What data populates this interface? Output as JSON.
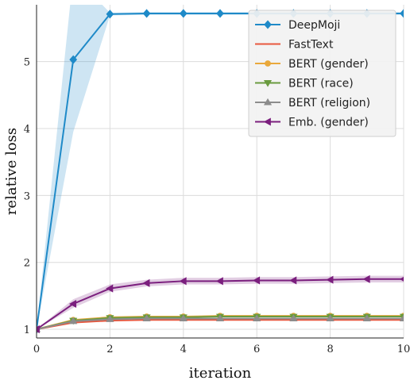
{
  "chart_data": {
    "type": "line",
    "xlabel": "iteration",
    "ylabel": "relative loss",
    "xlim": [
      0,
      10
    ],
    "ylim": [
      0.87,
      5.85
    ],
    "xticks": [
      0,
      2,
      4,
      6,
      8,
      10
    ],
    "yticks": [
      1,
      2,
      3,
      4,
      5
    ],
    "grid": true,
    "legend_position": "top-right",
    "x": [
      0,
      1,
      2,
      3,
      4,
      5,
      6,
      7,
      8,
      9,
      10
    ],
    "series": [
      {
        "name": "DeepMoji",
        "color": "#1f8ac8",
        "marker": "diamond",
        "values": [
          1.0,
          5.03,
          5.71,
          5.72,
          5.72,
          5.72,
          5.72,
          5.72,
          5.72,
          5.72,
          5.72
        ],
        "band_lower": [
          1.0,
          3.95,
          5.69,
          5.7,
          5.7,
          5.7,
          5.7,
          5.7,
          5.7,
          5.7,
          5.7
        ],
        "band_upper": [
          1.0,
          6.3,
          5.73,
          5.74,
          5.74,
          5.74,
          5.74,
          5.74,
          5.74,
          5.74,
          5.74
        ]
      },
      {
        "name": "FastText",
        "color": "#e8573e",
        "marker": "none",
        "values": [
          1.0,
          1.1,
          1.13,
          1.14,
          1.14,
          1.14,
          1.14,
          1.14,
          1.14,
          1.14,
          1.14
        ]
      },
      {
        "name": "BERT (gender)",
        "color": "#e9a83b",
        "marker": "circle",
        "values": [
          1.0,
          1.14,
          1.18,
          1.19,
          1.19,
          1.2,
          1.2,
          1.2,
          1.2,
          1.2,
          1.2
        ]
      },
      {
        "name": "BERT (race)",
        "color": "#6a9b3f",
        "marker": "triangle-down",
        "values": [
          1.0,
          1.13,
          1.17,
          1.18,
          1.18,
          1.19,
          1.19,
          1.19,
          1.19,
          1.19,
          1.19
        ]
      },
      {
        "name": "BERT (religion)",
        "color": "#8c8c8c",
        "marker": "triangle-up",
        "values": [
          1.0,
          1.12,
          1.15,
          1.16,
          1.16,
          1.16,
          1.16,
          1.16,
          1.16,
          1.16,
          1.16
        ]
      },
      {
        "name": "Emb. (gender)",
        "color": "#7b1f7e",
        "marker": "triangle-left",
        "values": [
          1.0,
          1.38,
          1.61,
          1.69,
          1.72,
          1.72,
          1.73,
          1.73,
          1.74,
          1.75,
          1.75
        ],
        "band_lower": [
          1.0,
          1.32,
          1.56,
          1.64,
          1.67,
          1.67,
          1.68,
          1.68,
          1.69,
          1.7,
          1.7
        ],
        "band_upper": [
          1.0,
          1.45,
          1.67,
          1.74,
          1.77,
          1.77,
          1.78,
          1.78,
          1.79,
          1.8,
          1.8
        ]
      }
    ]
  }
}
